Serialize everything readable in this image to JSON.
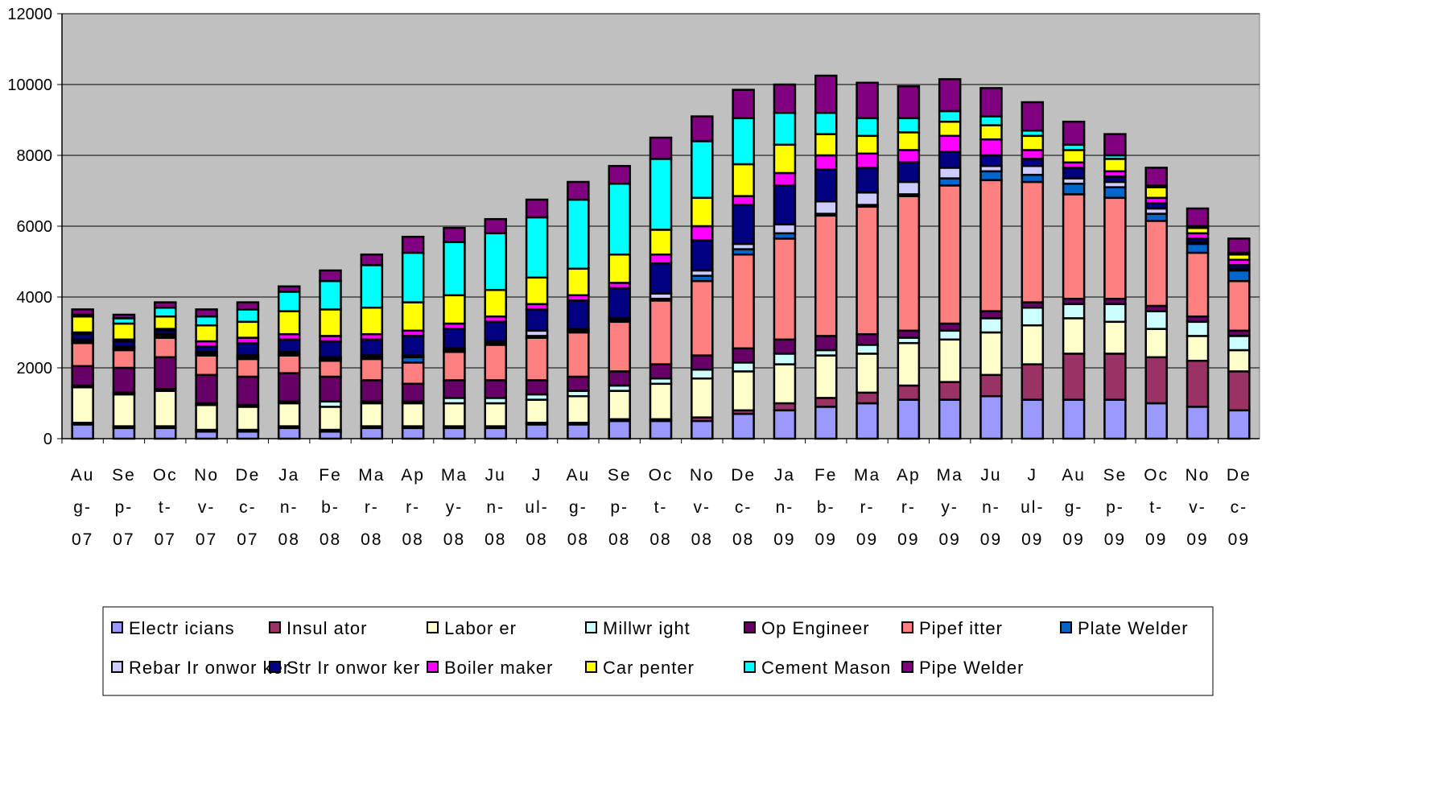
{
  "chart_data": {
    "type": "bar",
    "stacked": true,
    "ylim": [
      0,
      12000
    ],
    "yticks": [
      0,
      2000,
      4000,
      6000,
      8000,
      10000,
      12000
    ],
    "ytick_labels": [
      "0",
      "2000",
      "4000",
      "6000",
      "8000",
      "10000",
      "12000"
    ],
    "grid": "horizontal",
    "legend_position": "bottom",
    "plot_background": "#c0c0c0",
    "categories": [
      "Aug-07",
      "Sep-07",
      "Oct-07",
      "Nov-07",
      "Dec-07",
      "Jan-08",
      "Feb-08",
      "Mar-08",
      "Apr-08",
      "May-08",
      "Jun-08",
      "Jul-08",
      "Aug-08",
      "Sep-08",
      "Oct-08",
      "Nov-08",
      "Dec-08",
      "Jan-09",
      "Feb-09",
      "Mar-09",
      "Apr-09",
      "May-09",
      "Jun-09",
      "Jul-09",
      "Aug-09",
      "Sep-09",
      "Oct-09",
      "Nov-09",
      "Dec-09"
    ],
    "category_label_lines": [
      [
        "Au",
        "g-",
        "07"
      ],
      [
        "Se",
        "p-",
        "07"
      ],
      [
        "Oc",
        "t-",
        "07"
      ],
      [
        "No",
        "v-",
        "07"
      ],
      [
        "De",
        "c-",
        "07"
      ],
      [
        "Ja",
        "n-",
        "08"
      ],
      [
        "Fe",
        "b-",
        "08"
      ],
      [
        "Ma",
        "r-",
        "08"
      ],
      [
        "Ap",
        "r-",
        "08"
      ],
      [
        "Ma",
        "y-",
        "08"
      ],
      [
        "Ju",
        "n-",
        "08"
      ],
      [
        "J",
        "ul-",
        "08"
      ],
      [
        "Au",
        "g-",
        "08"
      ],
      [
        "Se",
        "p-",
        "08"
      ],
      [
        "Oc",
        "t-",
        "08"
      ],
      [
        "No",
        "v-",
        "08"
      ],
      [
        "De",
        "c-",
        "08"
      ],
      [
        "Ja",
        "n-",
        "09"
      ],
      [
        "Fe",
        "b-",
        "09"
      ],
      [
        "Ma",
        "r-",
        "09"
      ],
      [
        "Ap",
        "r-",
        "09"
      ],
      [
        "Ma",
        "y-",
        "09"
      ],
      [
        "Ju",
        "n-",
        "09"
      ],
      [
        "J",
        "ul-",
        "09"
      ],
      [
        "Au",
        "g-",
        "09"
      ],
      [
        "Se",
        "p-",
        "09"
      ],
      [
        "Oc",
        "t-",
        "09"
      ],
      [
        "No",
        "v-",
        "09"
      ],
      [
        "De",
        "c-",
        "09"
      ]
    ],
    "series": [
      {
        "name": "Electricians",
        "legend_label": "Electr icians",
        "color": "#9999ff",
        "values": [
          400,
          300,
          300,
          200,
          200,
          300,
          200,
          300,
          300,
          300,
          300,
          400,
          400,
          500,
          500,
          500,
          700,
          800,
          900,
          1000,
          1100,
          1100,
          1200,
          1100,
          1100,
          1100,
          1000,
          900,
          800
        ]
      },
      {
        "name": "Insulator",
        "legend_label": "Insul ator",
        "color": "#993366",
        "values": [
          50,
          50,
          50,
          50,
          50,
          50,
          50,
          50,
          50,
          50,
          50,
          50,
          50,
          50,
          50,
          100,
          100,
          200,
          250,
          300,
          400,
          500,
          600,
          1000,
          1300,
          1300,
          1300,
          1300,
          1100
        ]
      },
      {
        "name": "Laborer",
        "legend_label": "Labor er",
        "color": "#ffffcc",
        "values": [
          1000,
          900,
          1000,
          700,
          650,
          650,
          650,
          650,
          650,
          650,
          650,
          650,
          750,
          800,
          1000,
          1100,
          1100,
          1100,
          1200,
          1100,
          1200,
          1200,
          1200,
          1100,
          1000,
          900,
          800,
          700,
          600
        ]
      },
      {
        "name": "Millwright",
        "legend_label": "Millwr ight",
        "color": "#ccffff",
        "values": [
          50,
          50,
          50,
          50,
          50,
          50,
          150,
          50,
          50,
          150,
          150,
          150,
          150,
          150,
          150,
          250,
          250,
          300,
          150,
          250,
          150,
          250,
          400,
          500,
          400,
          500,
          500,
          400,
          400
        ]
      },
      {
        "name": "Op Engineer",
        "legend_label": "Op Engineer",
        "color": "#660066",
        "values": [
          550,
          700,
          900,
          800,
          800,
          800,
          700,
          600,
          500,
          500,
          500,
          400,
          400,
          400,
          400,
          400,
          400,
          400,
          400,
          300,
          200,
          200,
          200,
          150,
          150,
          150,
          150,
          150,
          150
        ]
      },
      {
        "name": "Pipefitter",
        "legend_label": "Pipef itter",
        "color": "#ff8080",
        "values": [
          650,
          500,
          550,
          550,
          500,
          500,
          450,
          600,
          600,
          800,
          1000,
          1200,
          1250,
          1400,
          1800,
          2100,
          2650,
          2850,
          3400,
          3600,
          3800,
          3900,
          3700,
          3400,
          2950,
          2850,
          2400,
          1800,
          1400
        ]
      },
      {
        "name": "Plate Welder",
        "legend_label": "Plate Welder",
        "color": "#0066cc",
        "values": [
          50,
          50,
          50,
          50,
          50,
          50,
          50,
          50,
          150,
          50,
          50,
          50,
          50,
          50,
          50,
          150,
          150,
          150,
          50,
          50,
          50,
          200,
          250,
          200,
          300,
          300,
          200,
          250,
          300
        ]
      },
      {
        "name": "Rebar Ironworker",
        "legend_label": "Rebar Ir onwor ker",
        "color": "#ccccff",
        "values": [
          50,
          50,
          50,
          50,
          50,
          50,
          50,
          50,
          50,
          50,
          50,
          150,
          50,
          50,
          150,
          150,
          150,
          250,
          350,
          350,
          350,
          300,
          150,
          250,
          150,
          150,
          150,
          50,
          50
        ]
      },
      {
        "name": "Str Ironworker",
        "legend_label": "Str Ir onwor ker",
        "color": "#000080",
        "values": [
          150,
          150,
          100,
          150,
          350,
          350,
          450,
          450,
          550,
          550,
          550,
          600,
          800,
          850,
          850,
          850,
          1100,
          1100,
          900,
          700,
          550,
          450,
          300,
          200,
          300,
          150,
          150,
          100,
          100
        ]
      },
      {
        "name": "Boilermaker",
        "legend_label": "Boiler maker",
        "color": "#ff00ff",
        "values": [
          50,
          50,
          50,
          150,
          150,
          150,
          150,
          150,
          150,
          150,
          150,
          150,
          150,
          150,
          250,
          400,
          250,
          350,
          400,
          400,
          350,
          450,
          450,
          250,
          150,
          150,
          150,
          150,
          150
        ]
      },
      {
        "name": "Carpenter",
        "legend_label": "Car penter",
        "color": "#ffff00",
        "values": [
          450,
          450,
          350,
          450,
          450,
          650,
          750,
          750,
          800,
          800,
          750,
          750,
          750,
          800,
          700,
          800,
          900,
          800,
          600,
          500,
          500,
          400,
          400,
          400,
          350,
          350,
          300,
          150,
          150
        ]
      },
      {
        "name": "Cement Mason",
        "legend_label": "Cement Mason",
        "color": "#00ffff",
        "values": [
          50,
          150,
          250,
          250,
          350,
          550,
          800,
          1200,
          1400,
          1500,
          1600,
          1700,
          1950,
          2000,
          2000,
          1600,
          1300,
          900,
          600,
          500,
          400,
          300,
          250,
          150,
          150,
          100,
          50,
          50,
          50
        ]
      },
      {
        "name": "Pipe Welder",
        "legend_label": "Pipe Welder",
        "color": "#800080",
        "values": [
          150,
          100,
          150,
          200,
          200,
          150,
          300,
          300,
          450,
          400,
          400,
          500,
          500,
          500,
          600,
          700,
          800,
          800,
          1050,
          1000,
          900,
          900,
          800,
          800,
          650,
          600,
          500,
          500,
          400
        ]
      }
    ]
  }
}
